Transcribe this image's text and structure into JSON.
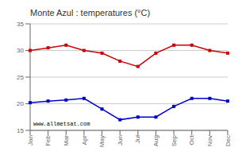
{
  "chart_data": {
    "type": "line",
    "title": "Monte Azul : temperatures (°C)",
    "categories": [
      "Jan",
      "Feb",
      "Mar",
      "Apr",
      "May",
      "Jun",
      "Jul",
      "Aug",
      "Sep",
      "Oct",
      "Nov",
      "Dec"
    ],
    "series": [
      {
        "color": "#cc0000",
        "marker": "square",
        "values": [
          30.0,
          30.5,
          31.0,
          30.0,
          29.5,
          28.0,
          27.0,
          29.5,
          31.0,
          31.0,
          30.0,
          29.5
        ]
      },
      {
        "color": "#0000cc",
        "marker": "square",
        "values": [
          20.2,
          20.5,
          20.7,
          21.0,
          19.0,
          17.0,
          17.5,
          17.5,
          19.5,
          21.0,
          21.0,
          20.5
        ]
      }
    ],
    "ylim": [
      15,
      35
    ],
    "yticks": [
      15,
      20,
      25,
      30,
      35
    ],
    "grid": true,
    "annotations": [
      "www.allmetsat.com"
    ]
  }
}
